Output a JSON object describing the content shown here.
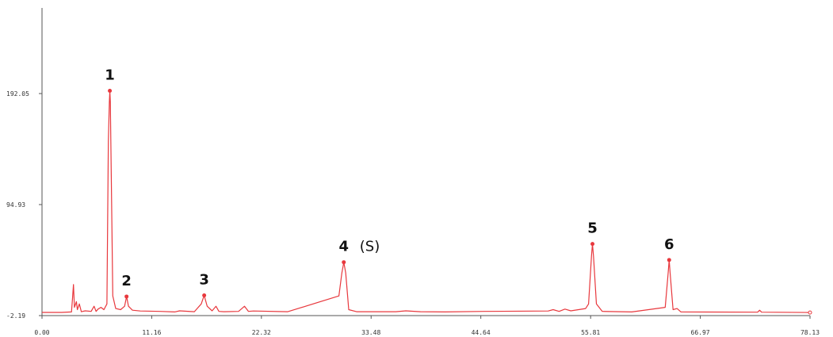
{
  "chart_data": {
    "type": "line",
    "x_ticks": [
      "0.00",
      "11.16",
      "22.32",
      "33.48",
      "44.64",
      "55.81",
      "66.97",
      "78.13"
    ],
    "y_ticks": [
      "-2.19",
      "94.93",
      "192.05"
    ],
    "xlim": [
      0,
      78.13
    ],
    "ylim": [
      -2.19,
      192.05
    ],
    "grid": false,
    "color": "#e8383d",
    "peaks": [
      {
        "label": "1",
        "note": "",
        "x": 6.9,
        "y": 194.5
      },
      {
        "label": "2",
        "note": "",
        "x": 8.6,
        "y": 14.5
      },
      {
        "label": "3",
        "note": "",
        "x": 16.5,
        "y": 15.5
      },
      {
        "label": "4",
        "note": "(S)",
        "x": 30.7,
        "y": 44.5
      },
      {
        "label": "5",
        "note": "",
        "x": 56.0,
        "y": 60.5
      },
      {
        "label": "6",
        "note": "",
        "x": 63.8,
        "y": 46.5
      }
    ],
    "series": [
      {
        "x": [
          0.0,
          2.0,
          3.0,
          3.1,
          3.2,
          3.3,
          3.5,
          3.6,
          3.8,
          4.0,
          4.4,
          5.0,
          5.3,
          5.5,
          5.7,
          6.0,
          6.3,
          6.6,
          6.75,
          6.85,
          6.9,
          6.95,
          7.05,
          7.2,
          7.5,
          8.0,
          8.4,
          8.6,
          8.8,
          9.2,
          10.0,
          12.0,
          13.5,
          14.0,
          15.5,
          16.2,
          16.5,
          16.8,
          17.3,
          17.7,
          18.0,
          18.5,
          20.0,
          20.6,
          21.0,
          21.5,
          25.0,
          30.2,
          30.5,
          30.7,
          30.9,
          31.2,
          32.0,
          36.0,
          37.0,
          38.5,
          41.0,
          45.0,
          51.5,
          52.0,
          52.6,
          53.2,
          53.8,
          55.3,
          55.6,
          55.9,
          56.0,
          56.1,
          56.4,
          57.0,
          60.0,
          63.4,
          63.7,
          63.8,
          63.9,
          64.2,
          64.6,
          65.0,
          72.8,
          73.0,
          73.2,
          78.13
        ],
        "y": [
          0.6,
          0.6,
          1.0,
          12.0,
          25.0,
          5.0,
          10.0,
          3.0,
          8.0,
          1.2,
          2.0,
          1.5,
          6.0,
          1.5,
          3.5,
          5.0,
          3.0,
          8.0,
          150.0,
          185.0,
          194.5,
          185.0,
          120.0,
          15.0,
          4.0,
          3.0,
          6.0,
          14.5,
          6.0,
          2.5,
          1.8,
          1.5,
          1.0,
          2.0,
          1.2,
          8.0,
          15.5,
          6.0,
          2.0,
          6.0,
          1.5,
          1.2,
          1.5,
          6.0,
          1.5,
          1.8,
          1.2,
          15.0,
          35.0,
          44.5,
          35.0,
          3.0,
          1.2,
          1.2,
          2.0,
          1.2,
          1.0,
          1.5,
          1.8,
          3.0,
          1.5,
          3.5,
          2.0,
          4.0,
          8.0,
          50.0,
          60.5,
          50.0,
          8.0,
          1.5,
          1.0,
          5.0,
          35.0,
          46.5,
          35.0,
          3.0,
          4.0,
          1.0,
          0.8,
          2.5,
          0.8,
          0.5
        ]
      }
    ]
  }
}
